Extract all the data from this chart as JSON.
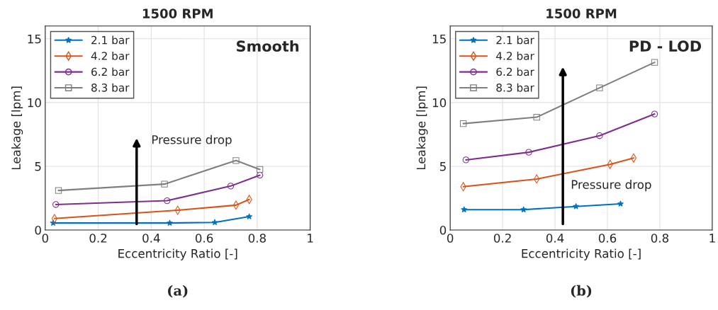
{
  "chart_data": [
    {
      "type": "line",
      "title": "1500 RPM",
      "xlabel": "Eccentricity Ratio [-]",
      "ylabel": "Leakage [lpm]",
      "xlim": [
        0,
        1
      ],
      "ylim": [
        0,
        16
      ],
      "xticks": [
        0,
        0.2,
        0.4,
        0.6,
        0.8,
        1
      ],
      "yticks": [
        0,
        5,
        10,
        15
      ],
      "grid": true,
      "legend": "top left",
      "series": [
        {
          "name": "2.1 bar",
          "color": "#0072bd",
          "marker": "star",
          "x": [
            0.03,
            0.47,
            0.64,
            0.77
          ],
          "values": [
            0.55,
            0.55,
            0.6,
            1.05
          ]
        },
        {
          "name": "4.2 bar",
          "color": "#d95319",
          "marker": "diamond",
          "x": [
            0.035,
            0.5,
            0.72,
            0.77
          ],
          "values": [
            0.9,
            1.55,
            1.95,
            2.4
          ]
        },
        {
          "name": "6.2 bar",
          "color": "#7e2f8e",
          "marker": "circle",
          "x": [
            0.04,
            0.46,
            0.7,
            0.81
          ],
          "values": [
            2.0,
            2.3,
            3.45,
            4.3
          ]
        },
        {
          "name": "8.3 bar",
          "color": "#7f7f7f",
          "marker": "square",
          "x": [
            0.05,
            0.45,
            0.72,
            0.81
          ],
          "values": [
            3.1,
            3.6,
            5.45,
            4.75
          ]
        }
      ],
      "annotations": [
        "Smooth",
        "Pressure drop",
        "(a)"
      ]
    },
    {
      "type": "line",
      "title": "1500 RPM",
      "xlabel": "Eccentricity Ratio [-]",
      "ylabel": "Leakage [lpm]",
      "xlim": [
        0,
        1
      ],
      "ylim": [
        0,
        16
      ],
      "xticks": [
        0,
        0.2,
        0.4,
        0.6,
        0.8,
        1
      ],
      "yticks": [
        0,
        5,
        10,
        15
      ],
      "grid": true,
      "legend": "top left",
      "series": [
        {
          "name": "2.1 bar",
          "color": "#0072bd",
          "marker": "star",
          "x": [
            0.053,
            0.28,
            0.48,
            0.65
          ],
          "values": [
            1.6,
            1.6,
            1.85,
            2.05
          ]
        },
        {
          "name": "4.2 bar",
          "color": "#d95319",
          "marker": "diamond",
          "x": [
            0.05,
            0.33,
            0.61,
            0.7
          ],
          "values": [
            3.4,
            4.0,
            5.15,
            5.65
          ]
        },
        {
          "name": "6.2 bar",
          "color": "#7e2f8e",
          "marker": "circle",
          "x": [
            0.06,
            0.3,
            0.57,
            0.78
          ],
          "values": [
            5.5,
            6.1,
            7.4,
            9.1
          ]
        },
        {
          "name": "8.3 bar",
          "color": "#7f7f7f",
          "marker": "square",
          "x": [
            0.05,
            0.33,
            0.57,
            0.78
          ],
          "values": [
            8.35,
            8.85,
            11.15,
            13.15
          ]
        }
      ],
      "annotations": [
        "PD - LOD",
        "Pressure drop",
        "(b)"
      ]
    }
  ]
}
